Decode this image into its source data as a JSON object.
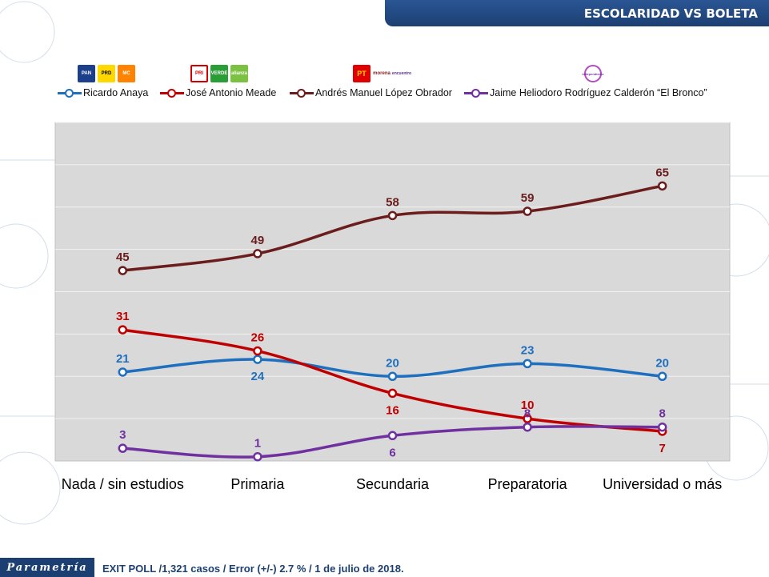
{
  "header": {
    "title": "ESCOLARIDAD VS BOLETA"
  },
  "logos": {
    "anaya": [
      "PAN",
      "PRD",
      "MC"
    ],
    "meade": [
      "PRI",
      "VERDE",
      "alianza"
    ],
    "amlo": [
      "PT",
      "morena",
      "encuentro"
    ],
    "bronco": [
      "independiente"
    ]
  },
  "colors": {
    "anaya": "#1f6fbf",
    "meade": "#c00000",
    "amlo": "#6b1c1c",
    "bronco": "#7030a0",
    "plot_bg": "#d9d9d9",
    "header_bg": "#1c3f72"
  },
  "footer": {
    "brand": "Parametría",
    "note": "EXIT POLL /1,321 casos / Error (+/-)  2.7 % / 1 de julio de  2018."
  },
  "chart_data": {
    "type": "line",
    "title": "ESCOLARIDAD VS BOLETA",
    "categories": [
      "Nada / sin estudios",
      "Primaria",
      "Secundaria",
      "Preparatoria",
      "Universidad o más"
    ],
    "ylim": [
      0,
      80
    ],
    "grid": true,
    "legend": "top",
    "series": [
      {
        "key": "anaya",
        "name": "Ricardo Anaya",
        "values": [
          21,
          24,
          20,
          23,
          20
        ]
      },
      {
        "key": "meade",
        "name": "José Antonio Meade",
        "values": [
          31,
          26,
          16,
          10,
          7
        ]
      },
      {
        "key": "amlo",
        "name": "Andrés Manuel López Obrador",
        "values": [
          45,
          49,
          58,
          59,
          65
        ]
      },
      {
        "key": "bronco",
        "name": "Jaime Heliodoro Rodríguez Calderón  “El Bronco”",
        "values": [
          3,
          1,
          6,
          8,
          8
        ]
      }
    ]
  }
}
